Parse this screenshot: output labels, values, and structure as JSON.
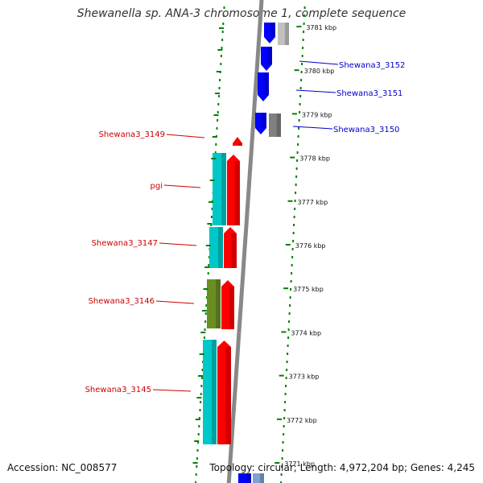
{
  "title": "Shewanella sp. ANA-3 chromosome 1, complete sequence",
  "accession": "Accession: NC_008577",
  "topology": "Topology: circular; Length: 4,972,204 bp; Genes: 4,245",
  "colors": {
    "forward_gene": "#ff0000",
    "forward_cds_cyan": "#00c8c8",
    "forward_cds_olive": "#6b8e23",
    "reverse_gene": "#0000ff",
    "reverse_cds_gray": "#808080",
    "label_forward": "#cc0000",
    "label_reverse": "#0000cc",
    "backbone": "#888888",
    "ticks": "#008000"
  },
  "scale": {
    "unit": "kbp",
    "ticks": [
      {
        "value": 3781,
        "label": "3781 kbp"
      },
      {
        "value": 3780,
        "label": "3780 kbp"
      },
      {
        "value": 3779,
        "label": "3779 kbp"
      },
      {
        "value": 3778,
        "label": "3778 kbp"
      },
      {
        "value": 3777,
        "label": "3777 kbp"
      },
      {
        "value": 3776,
        "label": "3776 kbp"
      },
      {
        "value": 3775,
        "label": "3775 kbp"
      },
      {
        "value": 3774,
        "label": "3774 kbp"
      },
      {
        "value": 3773,
        "label": "3773 kbp"
      },
      {
        "value": 3772,
        "label": "3772 kbp"
      },
      {
        "value": 3771,
        "label": "3771 kbp"
      }
    ]
  },
  "gene_labels": [
    {
      "name": "Shewana3_3152",
      "strand": "reverse"
    },
    {
      "name": "Shewana3_3151",
      "strand": "reverse"
    },
    {
      "name": "Shewana3_3150",
      "strand": "reverse"
    },
    {
      "name": "Shewana3_3149",
      "strand": "forward"
    },
    {
      "name": "pgi",
      "strand": "forward"
    },
    {
      "name": "Shewana3_3147",
      "strand": "forward"
    },
    {
      "name": "Shewana3_3146",
      "strand": "forward"
    },
    {
      "name": "Shewana3_3145",
      "strand": "forward"
    }
  ]
}
